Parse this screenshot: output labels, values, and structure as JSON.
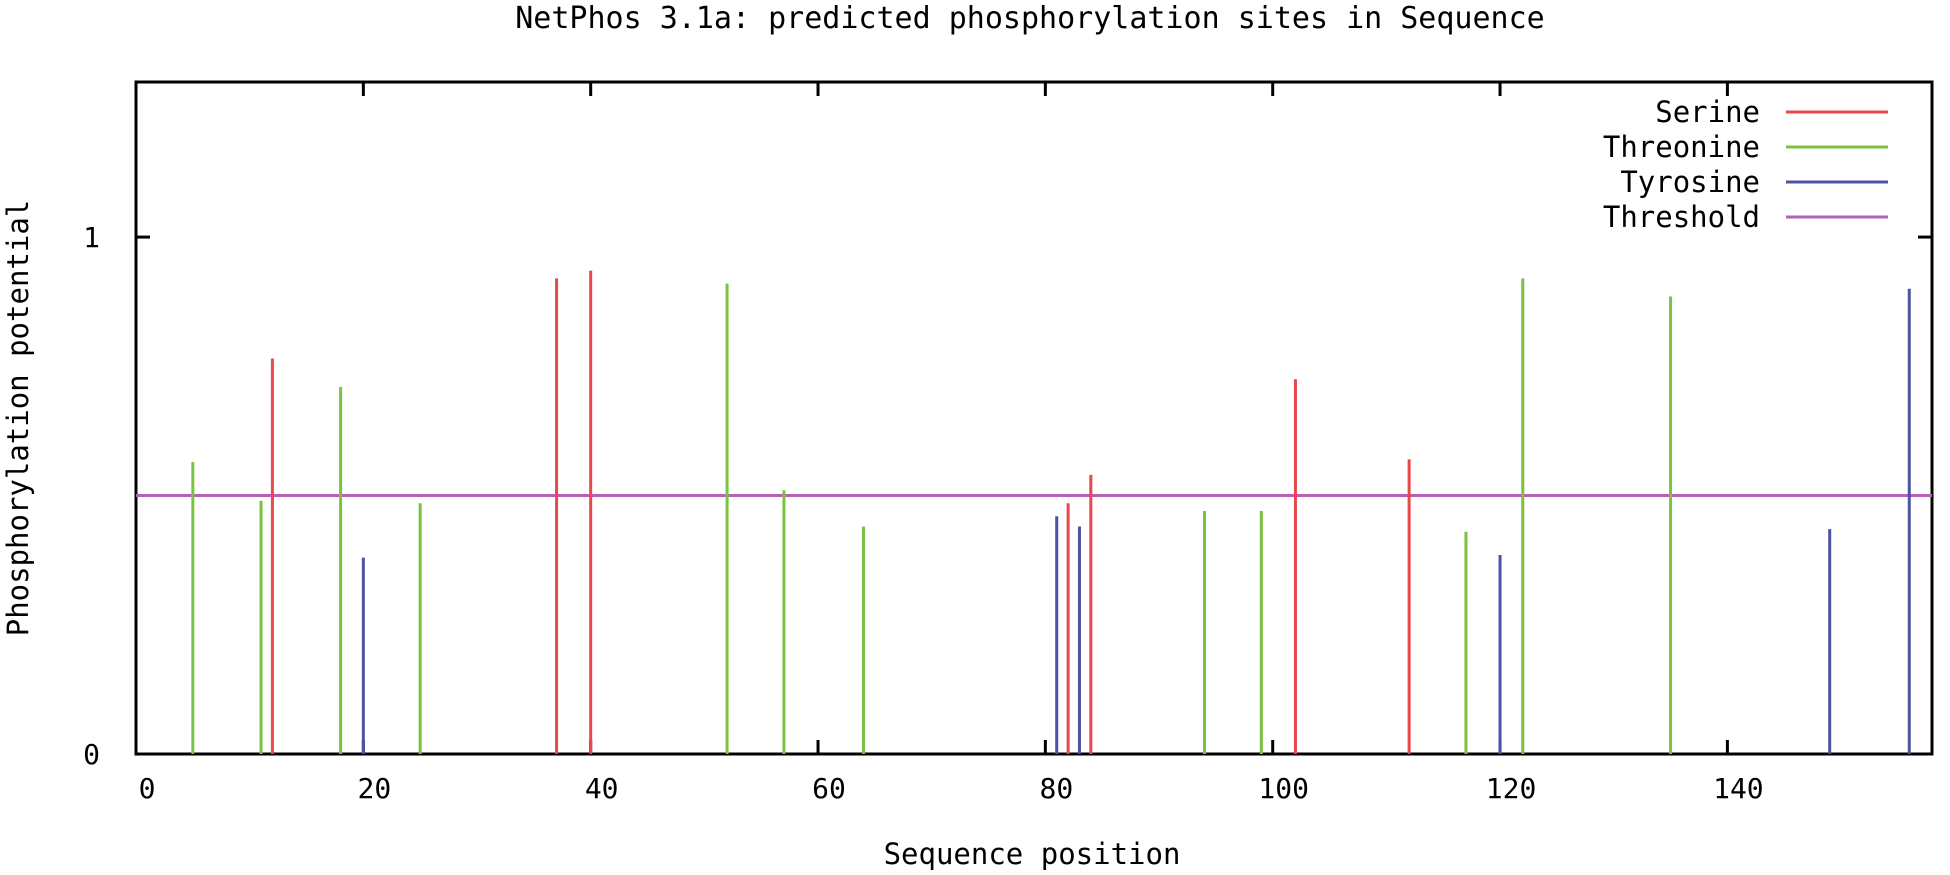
{
  "chart_data": {
    "type": "bar",
    "title": "NetPhos 3.1a: predicted phosphorylation sites in Sequence",
    "xlabel": "Sequence position",
    "ylabel": "Phosphorylation potential",
    "xlim": [
      0,
      158
    ],
    "ylim": [
      0,
      1.3
    ],
    "xticks": [
      0,
      20,
      40,
      60,
      80,
      100,
      120,
      140
    ],
    "yticks": [
      0,
      1
    ],
    "legend_position": "top-right",
    "grid": false,
    "threshold": 0.5,
    "series": [
      {
        "name": "Serine",
        "color": "#e8474b",
        "x": [
          12,
          37,
          40,
          82,
          84,
          102,
          112
        ],
        "values": [
          0.765,
          0.92,
          0.935,
          0.485,
          0.54,
          0.725,
          0.57
        ]
      },
      {
        "name": "Threonine",
        "color": "#7cc242",
        "x": [
          5,
          11,
          18,
          25,
          52,
          57,
          64,
          94,
          99,
          117,
          122,
          135
        ],
        "values": [
          0.565,
          0.49,
          0.71,
          0.485,
          0.91,
          0.51,
          0.44,
          0.47,
          0.47,
          0.43,
          0.92,
          0.885
        ]
      },
      {
        "name": "Tyrosine",
        "color": "#4c539f",
        "x": [
          20,
          81,
          83,
          120,
          149,
          156
        ],
        "values": [
          0.38,
          0.46,
          0.44,
          0.385,
          0.435,
          0.9
        ]
      },
      {
        "name": "Threshold",
        "color": "#b660b6",
        "values": [
          0.5
        ]
      }
    ]
  }
}
